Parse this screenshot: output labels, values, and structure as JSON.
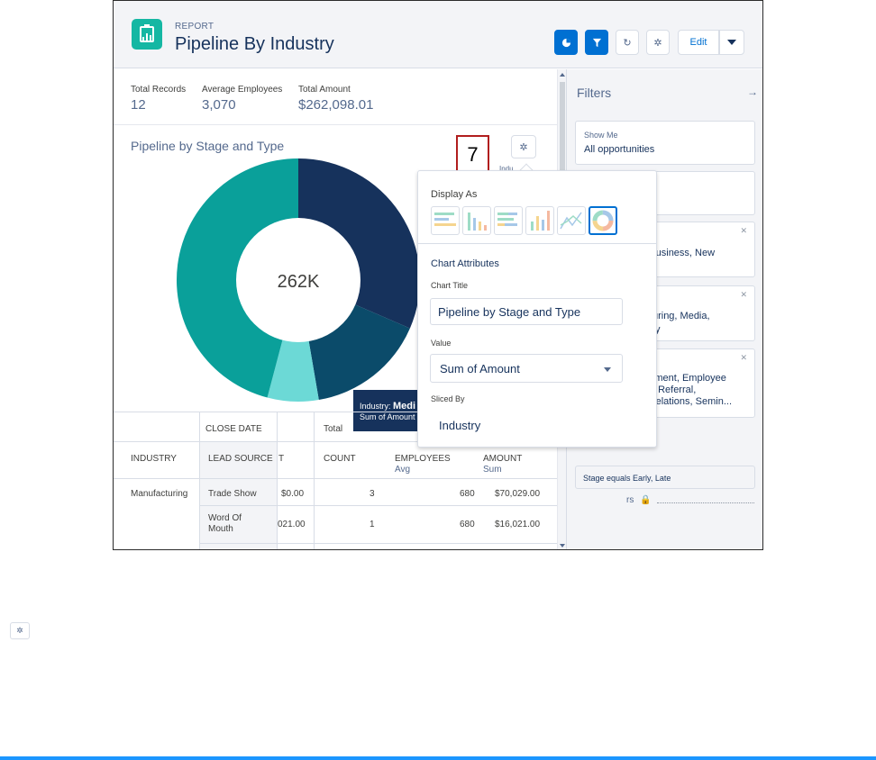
{
  "header": {
    "eyebrow": "REPORT",
    "title": "Pipeline By Industry",
    "edit_label": "Edit"
  },
  "stats": [
    {
      "label": "Total Records",
      "value": "12"
    },
    {
      "label": "Average Employees",
      "value": "3,070"
    },
    {
      "label": "Total Amount",
      "value": "$262,098.01"
    }
  ],
  "chart": {
    "title": "Pipeline by Stage and Type",
    "center_label": "262K",
    "industry_legend_partial": "Indu",
    "tooltip": {
      "line1_prefix": "Industry: ",
      "line1_value": "Medi",
      "line2": "Sum of Amount"
    }
  },
  "chart_data": {
    "type": "pie",
    "title": "Pipeline by Stage and Type",
    "center_value": "262K",
    "values": [
      0.315,
      0.158,
      0.068,
      0.459
    ],
    "colors": [
      "#16325c",
      "#0b4b6a",
      "#6cd9d6",
      "#0aa09a"
    ]
  },
  "callout_number": "7",
  "table": {
    "group_header_date": "CLOSE DATE",
    "group_header_total": "Total",
    "cols": {
      "industry": "INDUSTRY",
      "lead_source": "LEAD SOURCE",
      "t": "T",
      "count": "COUNT",
      "employees": "EMPLOYEES",
      "employees_sub": "Avg",
      "amount": "AMOUNT",
      "amount_sub": "Sum"
    },
    "rows": [
      {
        "industry": "Manufacturing",
        "lead_source": "Trade Show",
        "t": "$0.00",
        "count": "3",
        "employees": "680",
        "amount": "$70,029.00"
      },
      {
        "industry": "",
        "lead_source": "Word Of Mouth",
        "t": "021.00",
        "count": "1",
        "employees": "680",
        "amount": "$16,021.00"
      }
    ]
  },
  "filters": {
    "title": "Filters",
    "arrow": "→",
    "show_me_label": "Show Me",
    "show_me_value": "All opportunities",
    "card_type": "sting Business, New",
    "card_industry": "nufacturing, Media,\nhnology",
    "card_lead": "vertisement, Employee\nxternal Referral,\nublic Relations, Semin...",
    "locked_label": "rs",
    "locked_filter": "Stage equals Early, Late"
  },
  "panel": {
    "display_as": "Display As",
    "chart_attributes": "Chart Attributes",
    "chart_title_label": "Chart Title",
    "chart_title_value": "Pipeline by Stage and Type",
    "value_label": "Value",
    "value_selected": "Sum of Amount",
    "sliced_by_label": "Sliced By",
    "sliced_by_value": "Industry"
  }
}
